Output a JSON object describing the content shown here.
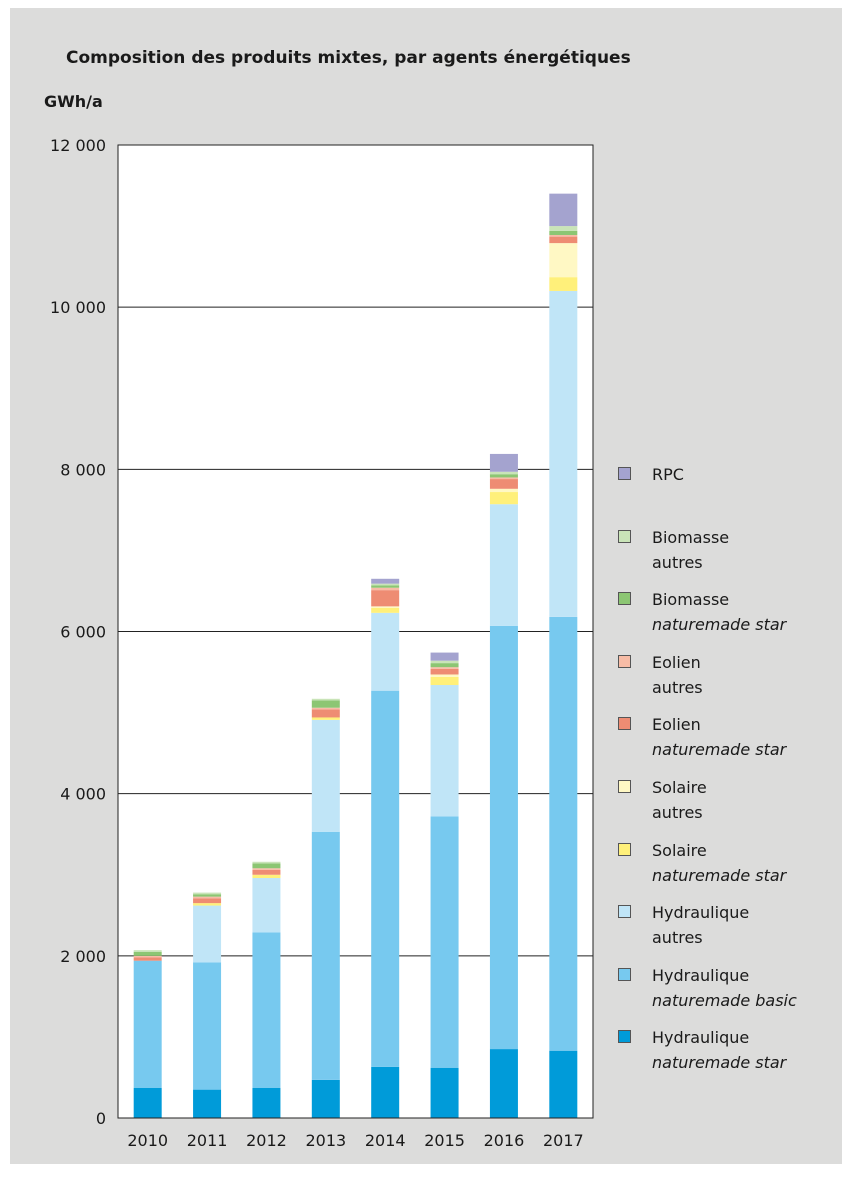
{
  "chart_data": {
    "type": "bar",
    "stacked": true,
    "title": "Composition des produits mixtes, par agents énergétiques",
    "ylabel": "GWh/a",
    "xlabel": "",
    "ylim": [
      0,
      12000
    ],
    "yticks": [
      0,
      2000,
      4000,
      6000,
      8000,
      10000,
      12000
    ],
    "ytick_labels": [
      "0",
      "2 000",
      "4 000",
      "6 000",
      "8 000",
      "10 000",
      "12 000"
    ],
    "grid": true,
    "legend_position": "right",
    "categories": [
      "2010",
      "2011",
      "2012",
      "2013",
      "2014",
      "2015",
      "2016",
      "2017"
    ],
    "series": [
      {
        "name": "Hydraulique naturemade star",
        "line1": "Hydraulique",
        "line2": "naturemade star",
        "italic": true,
        "color": "#009bd9",
        "values": [
          370,
          350,
          370,
          470,
          630,
          620,
          850,
          830
        ]
      },
      {
        "name": "Hydraulique naturemade basic",
        "line1": "Hydraulique",
        "line2": "naturemade basic",
        "italic": true,
        "color": "#77c9ef",
        "values": [
          1570,
          1570,
          1920,
          3060,
          4640,
          3100,
          5220,
          5350
        ]
      },
      {
        "name": "Hydraulique autres",
        "line1": "Hydraulique",
        "line2": "autres",
        "italic": false,
        "color": "#c0e5f7",
        "values": [
          0,
          700,
          670,
          1380,
          960,
          1620,
          1500,
          4020
        ]
      },
      {
        "name": "Solaire naturemade star",
        "line1": "Solaire",
        "line2": "naturemade star",
        "italic": true,
        "color": "#fff07a",
        "values": [
          0,
          30,
          40,
          30,
          60,
          100,
          150,
          170
        ]
      },
      {
        "name": "Solaire autres",
        "line1": "Solaire",
        "line2": "autres",
        "italic": false,
        "color": "#fff8c4",
        "values": [
          0,
          0,
          0,
          0,
          20,
          30,
          40,
          420
        ]
      },
      {
        "name": "Eolien naturemade star",
        "line1": "Eolien",
        "line2": "naturemade star",
        "italic": true,
        "color": "#ee8c73",
        "values": [
          40,
          60,
          60,
          100,
          200,
          70,
          120,
          80
        ]
      },
      {
        "name": "Eolien autres",
        "line1": "Eolien",
        "line2": "autres",
        "italic": false,
        "color": "#f7bca6",
        "values": [
          20,
          20,
          20,
          20,
          30,
          20,
          20,
          20
        ]
      },
      {
        "name": "Biomasse naturemade star",
        "line1": "Biomasse",
        "line2": "naturemade star",
        "italic": true,
        "color": "#8cc673",
        "values": [
          50,
          30,
          60,
          90,
          30,
          50,
          40,
          50
        ]
      },
      {
        "name": "Biomasse autres",
        "line1": "Biomasse",
        "line2": "autres",
        "italic": false,
        "color": "#c9e4b8",
        "values": [
          20,
          20,
          20,
          20,
          20,
          30,
          30,
          60
        ]
      },
      {
        "name": "RPC",
        "line1": "RPC",
        "line2": "",
        "italic": false,
        "color": "#a4a3cf",
        "values": [
          0,
          0,
          0,
          0,
          60,
          100,
          220,
          400
        ]
      }
    ]
  }
}
